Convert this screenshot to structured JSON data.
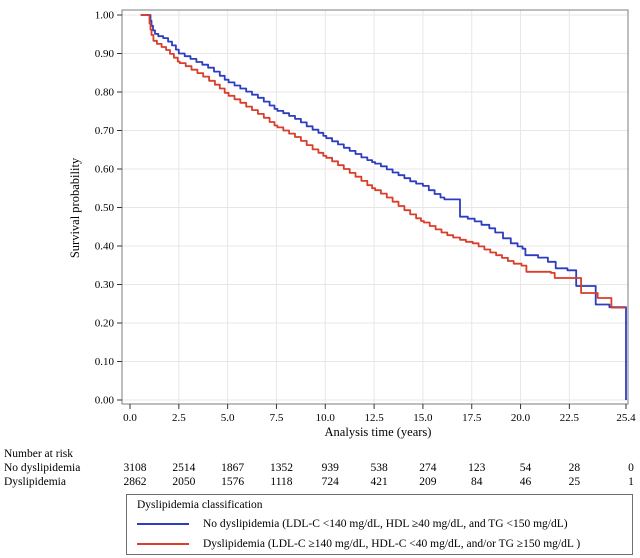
{
  "figure": {
    "y_axis_label": "Survival probability",
    "x_axis_label": "Analysis time (years)",
    "y_tick_labels": [
      "0.00",
      "0.10",
      "0.20",
      "0.30",
      "0.40",
      "0.50",
      "0.60",
      "0.70",
      "0.80",
      "0.90",
      "1.00"
    ],
    "x_tick_labels": [
      "0.0",
      "2.5",
      "5.0",
      "7.5",
      "10.0",
      "12.5",
      "15.0",
      "17.5",
      "20.0",
      "22.5",
      "25.4"
    ]
  },
  "risk_table": {
    "title": "Number at risk",
    "time_points": [
      0,
      2.5,
      5,
      7.5,
      10,
      12.5,
      15,
      17.5,
      20,
      22.5,
      25.4
    ],
    "rows": [
      {
        "label": "No dyslipidemia",
        "values": [
          "3108",
          "2514",
          "1867",
          "1352",
          "939",
          "538",
          "274",
          "123",
          "54",
          "28",
          "0"
        ]
      },
      {
        "label": "Dyslipidemia",
        "values": [
          "2862",
          "2050",
          "1576",
          "1118",
          "724",
          "421",
          "209",
          "84",
          "46",
          "25",
          "1"
        ]
      }
    ]
  },
  "legend": {
    "title": "Dyslipidemia classification",
    "entries": [
      {
        "label": "No dyslipidemia (LDL-C <140 mg/dL, HDL ≥40 mg/dL, and TG <150 mg/dL)",
        "color": "#2c3dbf"
      },
      {
        "label": "Dyslipidemia (LDL-C ≥140 mg/dL, HDL-C <40 mg/dL, and/or TG ≥150 mg/dL )",
        "color": "#da3d2a"
      }
    ]
  },
  "colors": {
    "grid": "#e9e6e6",
    "border": "#7d7d7d",
    "tick": "#333333",
    "no_dyslipidemia_line": "#2c3dbf",
    "dyslipidemia_line": "#da3d2a"
  },
  "chart_data": {
    "type": "line",
    "variant": "kaplan_meier_step",
    "title": "",
    "xlabel": "Analysis time (years)",
    "ylabel": "Survival probability",
    "xlim": [
      0,
      25.4
    ],
    "ylim": [
      0.0,
      1.0
    ],
    "x_ticks": [
      0,
      2.5,
      5,
      7.5,
      10,
      12.5,
      15,
      17.5,
      20,
      22.5,
      25.4
    ],
    "y_ticks": [
      0.0,
      0.1,
      0.2,
      0.3,
      0.4,
      0.5,
      0.6,
      0.7,
      0.8,
      0.9,
      1.0
    ],
    "grid": true,
    "legend_position": "bottom",
    "series": [
      {
        "name": "No dyslipidemia",
        "color": "#2c3dbf",
        "step_points": [
          [
            0.55,
            1.0
          ],
          [
            1.0,
            1.0
          ],
          [
            1.05,
            0.985
          ],
          [
            1.1,
            0.972
          ],
          [
            1.18,
            0.96
          ],
          [
            1.28,
            0.951
          ],
          [
            1.45,
            0.945
          ],
          [
            1.7,
            0.94
          ],
          [
            1.95,
            0.931
          ],
          [
            2.15,
            0.921
          ],
          [
            2.35,
            0.91
          ],
          [
            2.5,
            0.9
          ],
          [
            2.8,
            0.893
          ],
          [
            3.1,
            0.886
          ],
          [
            3.4,
            0.878
          ],
          [
            3.7,
            0.871
          ],
          [
            4.0,
            0.863
          ],
          [
            4.3,
            0.853
          ],
          [
            4.6,
            0.842
          ],
          [
            4.85,
            0.832
          ],
          [
            5.05,
            0.825
          ],
          [
            5.35,
            0.817
          ],
          [
            5.65,
            0.809
          ],
          [
            5.95,
            0.801
          ],
          [
            6.25,
            0.793
          ],
          [
            6.55,
            0.785
          ],
          [
            6.85,
            0.775
          ],
          [
            7.15,
            0.765
          ],
          [
            7.4,
            0.756
          ],
          [
            7.55,
            0.751
          ],
          [
            7.85,
            0.745
          ],
          [
            8.15,
            0.738
          ],
          [
            8.45,
            0.73
          ],
          [
            8.75,
            0.721
          ],
          [
            9.05,
            0.711
          ],
          [
            9.35,
            0.702
          ],
          [
            9.65,
            0.694
          ],
          [
            9.9,
            0.686
          ],
          [
            10.05,
            0.68
          ],
          [
            10.35,
            0.672
          ],
          [
            10.65,
            0.664
          ],
          [
            10.95,
            0.655
          ],
          [
            11.25,
            0.647
          ],
          [
            11.55,
            0.639
          ],
          [
            11.85,
            0.63
          ],
          [
            12.15,
            0.623
          ],
          [
            12.4,
            0.618
          ],
          [
            12.55,
            0.614
          ],
          [
            12.85,
            0.607
          ],
          [
            13.15,
            0.599
          ],
          [
            13.45,
            0.591
          ],
          [
            13.75,
            0.584
          ],
          [
            14.05,
            0.576
          ],
          [
            14.35,
            0.568
          ],
          [
            14.65,
            0.562
          ],
          [
            15.0,
            0.556
          ],
          [
            15.3,
            0.545
          ],
          [
            15.6,
            0.535
          ],
          [
            15.9,
            0.526
          ],
          [
            16.1,
            0.521
          ],
          [
            16.9,
            0.476
          ],
          [
            17.3,
            0.471
          ],
          [
            17.65,
            0.464
          ],
          [
            18.0,
            0.455
          ],
          [
            18.4,
            0.446
          ],
          [
            18.7,
            0.435
          ],
          [
            19.1,
            0.42
          ],
          [
            19.5,
            0.407
          ],
          [
            19.85,
            0.399
          ],
          [
            20.1,
            0.393
          ],
          [
            20.25,
            0.376
          ],
          [
            20.9,
            0.37
          ],
          [
            21.4,
            0.359
          ],
          [
            21.8,
            0.342
          ],
          [
            22.4,
            0.337
          ],
          [
            22.85,
            0.296
          ],
          [
            23.85,
            0.248
          ],
          [
            24.55,
            0.241
          ],
          [
            25.4,
            0.241
          ],
          [
            25.4,
            0.0
          ]
        ]
      },
      {
        "name": "Dyslipidemia",
        "color": "#da3d2a",
        "step_points": [
          [
            0.55,
            1.0
          ],
          [
            0.95,
            1.0
          ],
          [
            1.0,
            0.978
          ],
          [
            1.05,
            0.962
          ],
          [
            1.1,
            0.948
          ],
          [
            1.2,
            0.933
          ],
          [
            1.38,
            0.925
          ],
          [
            1.62,
            0.917
          ],
          [
            1.85,
            0.909
          ],
          [
            2.05,
            0.899
          ],
          [
            2.25,
            0.889
          ],
          [
            2.45,
            0.879
          ],
          [
            2.55,
            0.875
          ],
          [
            2.85,
            0.867
          ],
          [
            3.15,
            0.858
          ],
          [
            3.45,
            0.849
          ],
          [
            3.75,
            0.84
          ],
          [
            4.05,
            0.829
          ],
          [
            4.35,
            0.819
          ],
          [
            4.6,
            0.809
          ],
          [
            4.85,
            0.798
          ],
          [
            5.05,
            0.79
          ],
          [
            5.35,
            0.781
          ],
          [
            5.65,
            0.772
          ],
          [
            5.95,
            0.762
          ],
          [
            6.25,
            0.753
          ],
          [
            6.55,
            0.743
          ],
          [
            6.85,
            0.733
          ],
          [
            7.15,
            0.722
          ],
          [
            7.4,
            0.713
          ],
          [
            7.55,
            0.708
          ],
          [
            7.85,
            0.7
          ],
          [
            8.15,
            0.692
          ],
          [
            8.45,
            0.683
          ],
          [
            8.75,
            0.673
          ],
          [
            9.05,
            0.662
          ],
          [
            9.35,
            0.651
          ],
          [
            9.65,
            0.642
          ],
          [
            9.9,
            0.634
          ],
          [
            10.05,
            0.629
          ],
          [
            10.35,
            0.62
          ],
          [
            10.65,
            0.61
          ],
          [
            10.95,
            0.6
          ],
          [
            11.25,
            0.59
          ],
          [
            11.55,
            0.58
          ],
          [
            11.85,
            0.569
          ],
          [
            12.15,
            0.558
          ],
          [
            12.4,
            0.55
          ],
          [
            12.55,
            0.545
          ],
          [
            12.85,
            0.536
          ],
          [
            13.15,
            0.526
          ],
          [
            13.45,
            0.515
          ],
          [
            13.75,
            0.504
          ],
          [
            14.05,
            0.493
          ],
          [
            14.35,
            0.482
          ],
          [
            14.65,
            0.472
          ],
          [
            14.9,
            0.465
          ],
          [
            15.05,
            0.461
          ],
          [
            15.35,
            0.452
          ],
          [
            15.65,
            0.443
          ],
          [
            15.95,
            0.435
          ],
          [
            16.25,
            0.428
          ],
          [
            16.55,
            0.422
          ],
          [
            16.9,
            0.416
          ],
          [
            17.2,
            0.411
          ],
          [
            17.55,
            0.407
          ],
          [
            17.85,
            0.399
          ],
          [
            18.15,
            0.391
          ],
          [
            18.45,
            0.383
          ],
          [
            18.75,
            0.376
          ],
          [
            19.05,
            0.369
          ],
          [
            19.35,
            0.361
          ],
          [
            19.65,
            0.354
          ],
          [
            20.05,
            0.349
          ],
          [
            20.3,
            0.333
          ],
          [
            21.55,
            0.33
          ],
          [
            21.75,
            0.317
          ],
          [
            23.1,
            0.278
          ],
          [
            23.95,
            0.265
          ],
          [
            24.65,
            0.24
          ],
          [
            25.35,
            0.238
          ]
        ]
      }
    ]
  }
}
